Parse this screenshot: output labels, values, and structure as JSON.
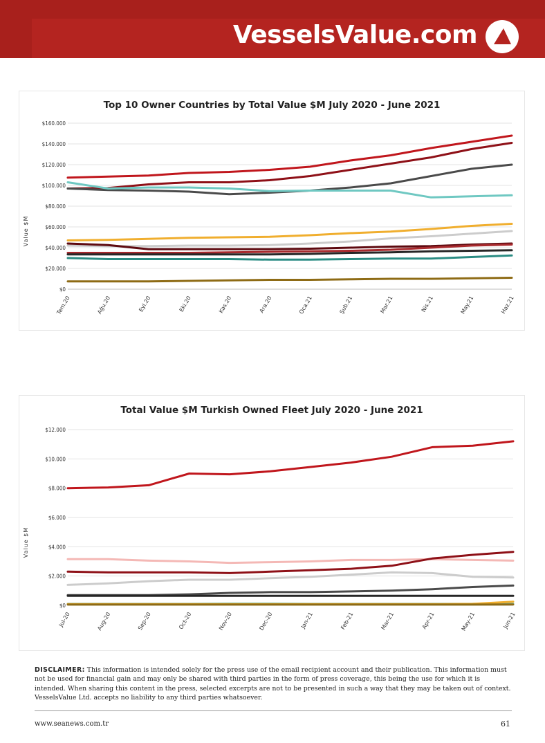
{
  "header": {
    "brand": "VesselsValue.com",
    "banner_color": "#a8201c"
  },
  "chart_data": [
    {
      "type": "line",
      "title": "Top 10 Owner Countries by Total Value $M July 2020 - June 2021",
      "ylabel": "Value $M",
      "xlabel": "",
      "categories": [
        "Tem.20",
        "Ağu.20",
        "Eyl.20",
        "Eki.20",
        "Kas.20",
        "Ara.20",
        "Oca.21",
        "Şub.21",
        "Mar.21",
        "Nis.21",
        "May.21",
        "Haz.21"
      ],
      "y_tick_labels": [
        "$0",
        "$20.000",
        "$40.000",
        "$60.000",
        "$80.000",
        "$100.000",
        "$120.000",
        "$140.000",
        "$160.000"
      ],
      "ylim": [
        0,
        160000
      ],
      "grid": true,
      "legend": "none",
      "series": [
        {
          "color": "#c0161c",
          "values": [
            107500,
            108500,
            109500,
            112000,
            113000,
            115000,
            118000,
            124000,
            129000,
            136000,
            142000,
            148000
          ]
        },
        {
          "color": "#8e1017",
          "values": [
            97000,
            97500,
            101000,
            103000,
            103000,
            105000,
            109000,
            115000,
            121000,
            127000,
            135000,
            141000
          ]
        },
        {
          "color": "#4a4a4a",
          "values": [
            97000,
            95500,
            95000,
            94000,
            91500,
            93000,
            95000,
            98000,
            102000,
            109000,
            116000,
            120000
          ]
        },
        {
          "color": "#6fc8c2",
          "values": [
            103000,
            97000,
            98000,
            98000,
            97000,
            94500,
            95000,
            95000,
            95000,
            88500,
            89500,
            90500
          ]
        },
        {
          "color": "#f0ae2e",
          "values": [
            47000,
            47500,
            48500,
            49500,
            50000,
            50500,
            52000,
            54000,
            55500,
            58000,
            61000,
            63000
          ]
        },
        {
          "color": "#cccccc",
          "values": [
            42000,
            41500,
            41500,
            42000,
            42000,
            42500,
            44000,
            46000,
            49000,
            51000,
            53500,
            56000
          ]
        },
        {
          "color": "#5e0a10",
          "values": [
            44000,
            42500,
            38500,
            38500,
            38500,
            38500,
            39000,
            40000,
            41000,
            41500,
            43000,
            44000
          ]
        },
        {
          "color": "#a82a2e",
          "values": [
            35000,
            35000,
            35000,
            35000,
            35500,
            36000,
            36500,
            37000,
            38000,
            40000,
            42000,
            43000
          ]
        },
        {
          "color": "#262626",
          "values": [
            33500,
            33500,
            33500,
            33500,
            33500,
            33500,
            34000,
            35000,
            35500,
            36500,
            37000,
            37500
          ]
        },
        {
          "color": "#2a8c83",
          "values": [
            30000,
            29000,
            29000,
            29000,
            29000,
            28500,
            28500,
            29000,
            29500,
            29500,
            31000,
            32500
          ]
        },
        {
          "color": "#8e6b15",
          "values": [
            7500,
            7500,
            7500,
            8000,
            8500,
            9000,
            9000,
            9500,
            10000,
            10000,
            10500,
            11000
          ]
        }
      ]
    },
    {
      "type": "line",
      "title": "Total Value $M Turkish Owned Fleet July 2020 - June 2021",
      "ylabel": "Value $M",
      "xlabel": "",
      "categories": [
        "Jul-20",
        "Aug-20",
        "Sep-20",
        "Oct-20",
        "Nov-20",
        "Dec-20",
        "Jan-21",
        "Feb-21",
        "Mar-21",
        "Apr-21",
        "May-21",
        "Jun-21"
      ],
      "y_tick_labels": [
        "$0",
        "$2.000",
        "$4.000",
        "$6.000",
        "$8.000",
        "$10.000",
        "$12.000"
      ],
      "ylim": [
        0,
        12000
      ],
      "grid": true,
      "legend": "none",
      "series": [
        {
          "color": "#c0161c",
          "values": [
            8000,
            8050,
            8200,
            9000,
            8950,
            9150,
            9450,
            9750,
            10150,
            10800,
            10900,
            11200
          ]
        },
        {
          "color": "#f4b8b5",
          "values": [
            3150,
            3150,
            3050,
            3000,
            2900,
            2950,
            3000,
            3100,
            3100,
            3150,
            3100,
            3050
          ]
        },
        {
          "color": "#8e1017",
          "values": [
            2300,
            2250,
            2250,
            2250,
            2200,
            2300,
            2400,
            2500,
            2700,
            3200,
            3450,
            3650
          ]
        },
        {
          "color": "#cccccc",
          "values": [
            1400,
            1500,
            1650,
            1750,
            1750,
            1850,
            1950,
            2100,
            2250,
            2200,
            1950,
            1900
          ]
        },
        {
          "color": "#4a4a4a",
          "values": [
            700,
            700,
            700,
            750,
            850,
            900,
            900,
            950,
            1000,
            1100,
            1250,
            1350
          ]
        },
        {
          "color": "#262626",
          "values": [
            650,
            650,
            650,
            650,
            650,
            650,
            650,
            650,
            650,
            650,
            650,
            650
          ]
        },
        {
          "color": "#6fc8c2",
          "values": [
            100,
            100,
            100,
            100,
            120,
            120,
            100,
            100,
            100,
            100,
            100,
            100
          ]
        },
        {
          "color": "#f0ae2e",
          "values": [
            80,
            80,
            80,
            80,
            80,
            80,
            80,
            80,
            80,
            80,
            100,
            250
          ]
        },
        {
          "color": "#8e6b15",
          "values": [
            50,
            50,
            50,
            50,
            50,
            50,
            50,
            50,
            50,
            50,
            50,
            60
          ]
        }
      ]
    }
  ],
  "disclaimer": {
    "label": "DISCLAIMER:",
    "text": "This information is intended solely for the press use of the email recipient account and their publication. This information must not be used for financial gain and may only be shared with third parties in the form of press coverage, this being the use for which it is intended. When sharing this content in the press, selected excerpts are not to be presented in such a way that they may be taken out of context. VesselsValue Ltd. accepts no liability to any third parties whatsoever."
  },
  "footer": {
    "site": "www.seanews.com.tr",
    "page": "61"
  }
}
